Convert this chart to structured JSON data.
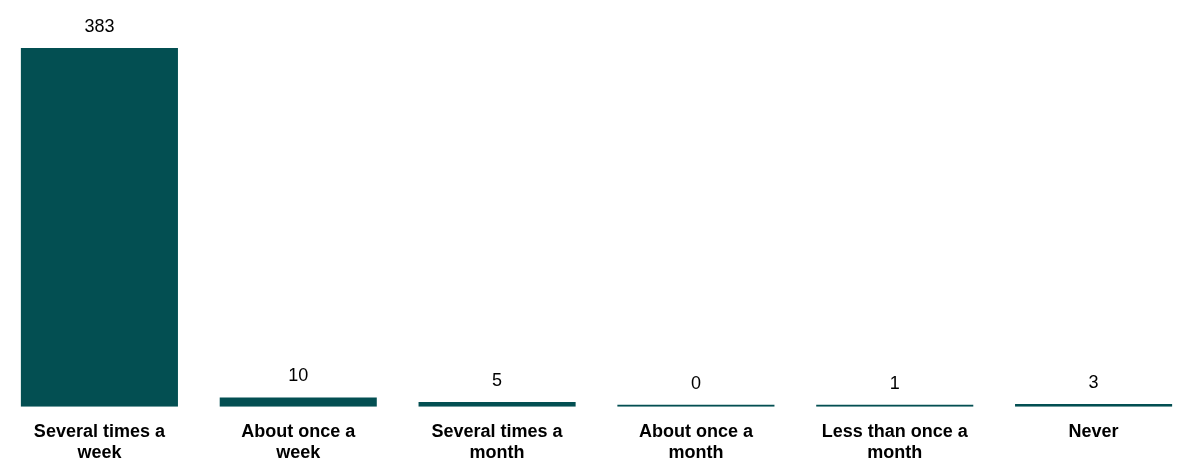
{
  "chart_data": {
    "type": "bar",
    "categories": [
      "Several times a week",
      "About once a week",
      "Several times a month",
      "About once a month",
      "Less than once a month",
      "Never"
    ],
    "values": [
      383,
      10,
      5,
      0,
      1,
      3
    ],
    "color": "#034f52",
    "data_labels": true
  }
}
